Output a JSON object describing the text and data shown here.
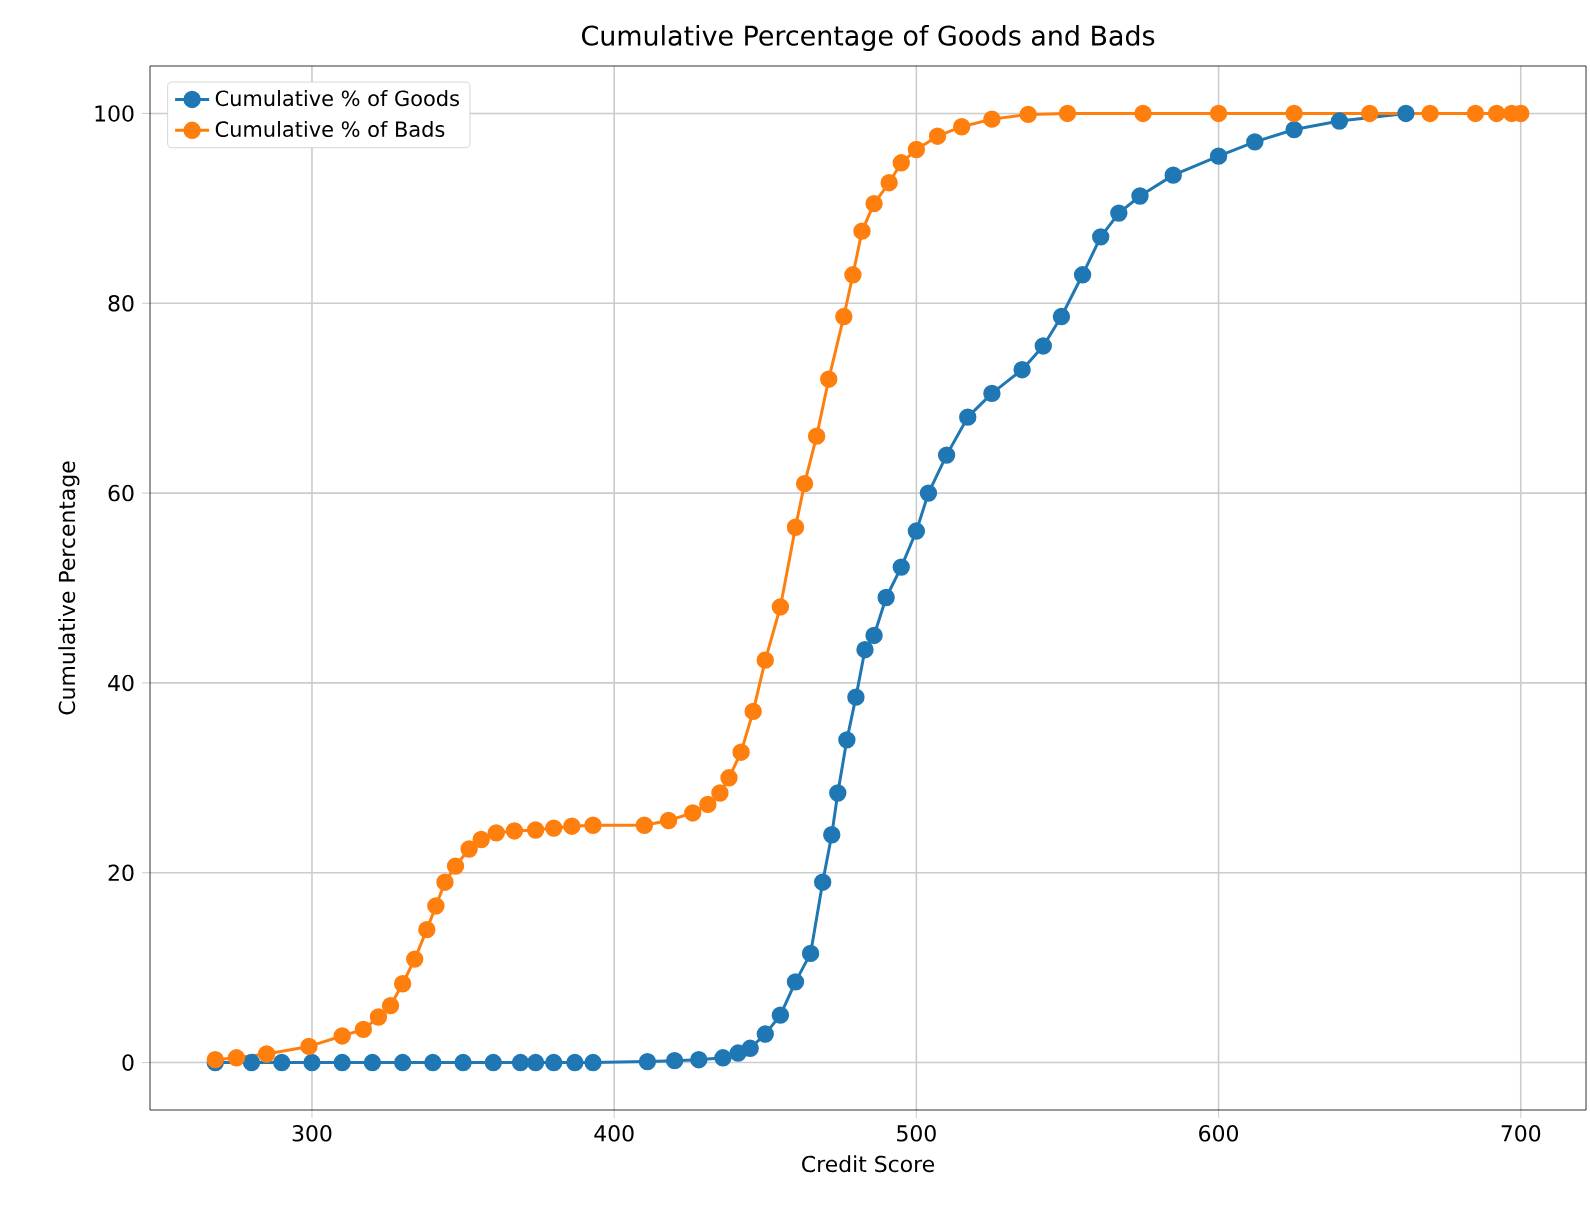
{
  "chart_data": {
    "type": "line",
    "title": "Cumulative Percentage of Goods and Bads",
    "xlabel": "Credit Score",
    "ylabel": "Cumulative Percentage",
    "xlim": [
      246.4,
      721.6
    ],
    "ylim": [
      -5,
      105
    ],
    "xticks": [
      300,
      400,
      500,
      600,
      700
    ],
    "yticks": [
      0,
      20,
      40,
      60,
      80,
      100
    ],
    "grid": true,
    "legend": "top left",
    "marker": "circle",
    "line_style": "solid",
    "series": [
      {
        "name": "Cumulative % of Goods",
        "color": "#1f77b4",
        "x": [
          268,
          280,
          290,
          300,
          310,
          320,
          330,
          340,
          350,
          360,
          369,
          374,
          380,
          387,
          393,
          411,
          420,
          428,
          436,
          441,
          445,
          450,
          455,
          460,
          465,
          469,
          472,
          474,
          477,
          480,
          483,
          486,
          490,
          495,
          500,
          504,
          510,
          517,
          525,
          535,
          542,
          548,
          555,
          561,
          567,
          574,
          585,
          600,
          612,
          625,
          640,
          662
        ],
        "values": [
          0,
          0,
          0,
          0,
          0,
          0,
          0,
          0,
          0,
          0,
          0,
          0,
          0,
          0,
          0,
          0.1,
          0.2,
          0.3,
          0.5,
          1,
          1.5,
          3,
          5,
          8.5,
          11.5,
          19,
          24,
          28.4,
          34,
          38.5,
          43.5,
          45,
          49,
          52.2,
          56,
          60,
          64,
          68,
          70.5,
          73,
          75.5,
          78.6,
          83,
          87,
          89.5,
          91.3,
          93.5,
          95.5,
          97,
          98.3,
          99.2,
          100
        ]
      },
      {
        "name": "Cumulative % of Bads",
        "color": "#ff7f0e",
        "x": [
          268,
          275,
          285,
          299,
          310,
          317,
          322,
          326,
          330,
          334,
          338,
          341,
          344,
          347.5,
          352,
          356,
          361,
          367,
          374,
          380,
          386,
          393,
          410,
          418,
          426,
          431,
          435,
          438,
          442,
          446,
          450,
          455,
          460,
          463,
          467,
          471,
          476,
          479,
          482,
          486,
          491,
          495,
          500,
          507,
          515,
          525,
          537,
          550,
          575,
          600,
          625,
          650,
          670,
          685,
          692,
          697,
          700
        ],
        "values": [
          0.3,
          0.5,
          0.9,
          1.7,
          2.8,
          3.5,
          4.8,
          6,
          8.3,
          10.9,
          14,
          16.5,
          19,
          20.7,
          22.5,
          23.5,
          24.2,
          24.4,
          24.5,
          24.7,
          24.9,
          25,
          25,
          25.5,
          26.3,
          27.2,
          28.4,
          30,
          32.7,
          37,
          42.4,
          48,
          56.4,
          61,
          66,
          72,
          78.6,
          83,
          87.6,
          90.5,
          92.7,
          94.8,
          96.2,
          97.6,
          98.6,
          99.4,
          99.9,
          100,
          100,
          100,
          100,
          100,
          100,
          100,
          100,
          100,
          100
        ]
      }
    ]
  }
}
